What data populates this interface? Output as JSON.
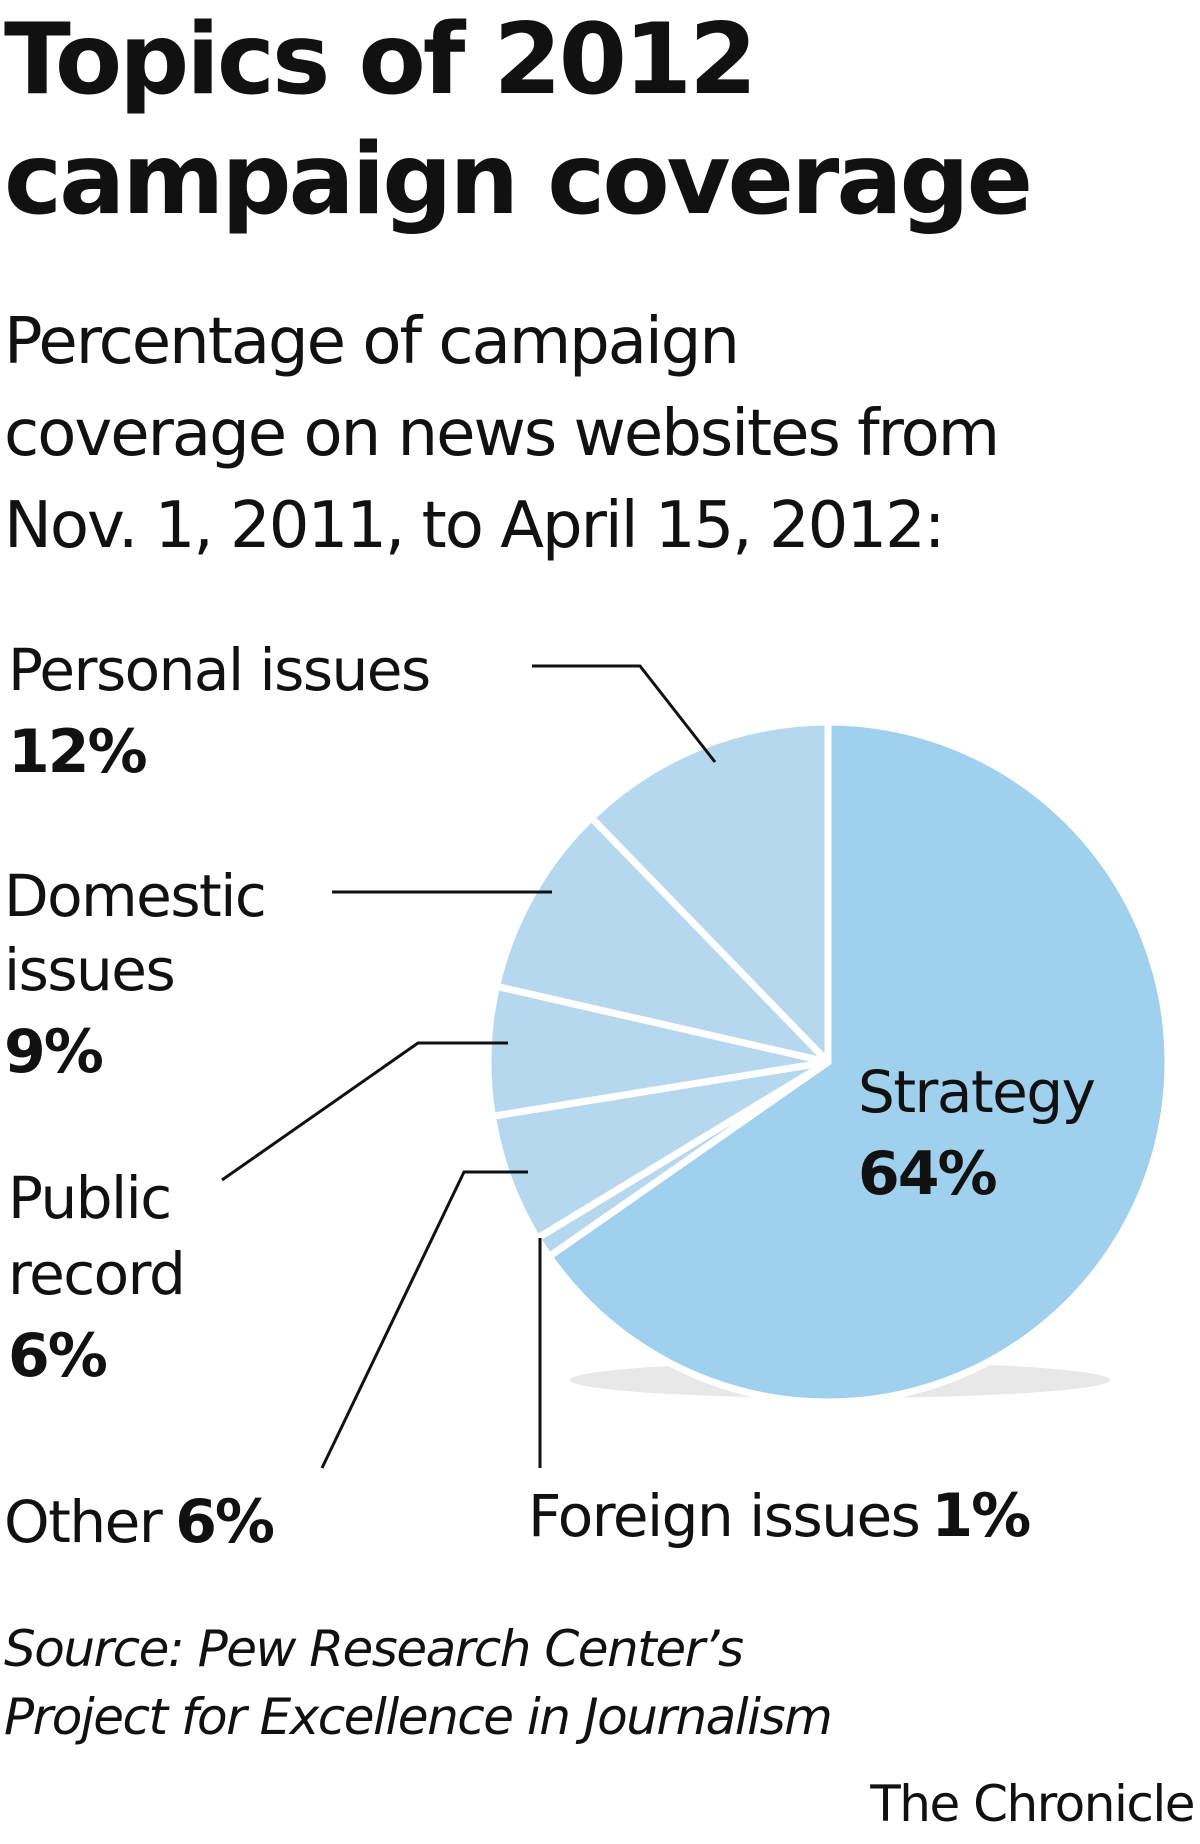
{
  "title_line1": "Topics of 2012",
  "title_line2": "campaign coverage",
  "subtitle_line1": "Percentage of campaign",
  "subtitle_line2": "coverage on news websites from",
  "subtitle_line3": "Nov. 1, 2011, to April 15, 2012:",
  "colors": {
    "slice_light": "#b5d8ef",
    "slice_main": "#9fd0ee",
    "separator": "#ffffff",
    "leader": "#111111"
  },
  "chart_data": {
    "type": "pie",
    "slices": [
      {
        "label": "Strategy",
        "value": 64,
        "value_label": "64%"
      },
      {
        "label": "Foreign issues",
        "value": 1,
        "value_label": "1%"
      },
      {
        "label": "Other",
        "value": 6,
        "value_label": "6%"
      },
      {
        "label": "Public record",
        "value": 6,
        "value_label": "6%"
      },
      {
        "label": "Domestic issues",
        "value": 9,
        "value_label": "9%"
      },
      {
        "label": "Personal issues",
        "value": 12,
        "value_label": "12%"
      }
    ],
    "label_lines": {
      "strategy": "Strategy",
      "foreign": "Foreign issues",
      "other": "Other",
      "public_1": "Public",
      "public_2": "record",
      "domestic_1": "Domestic",
      "domestic_2": "issues",
      "personal": "Personal issues"
    }
  },
  "source_line1": "Source: Pew Research Center’s",
  "source_line2": "Project for Excellence in Journalism",
  "credit": "The Chronicle"
}
